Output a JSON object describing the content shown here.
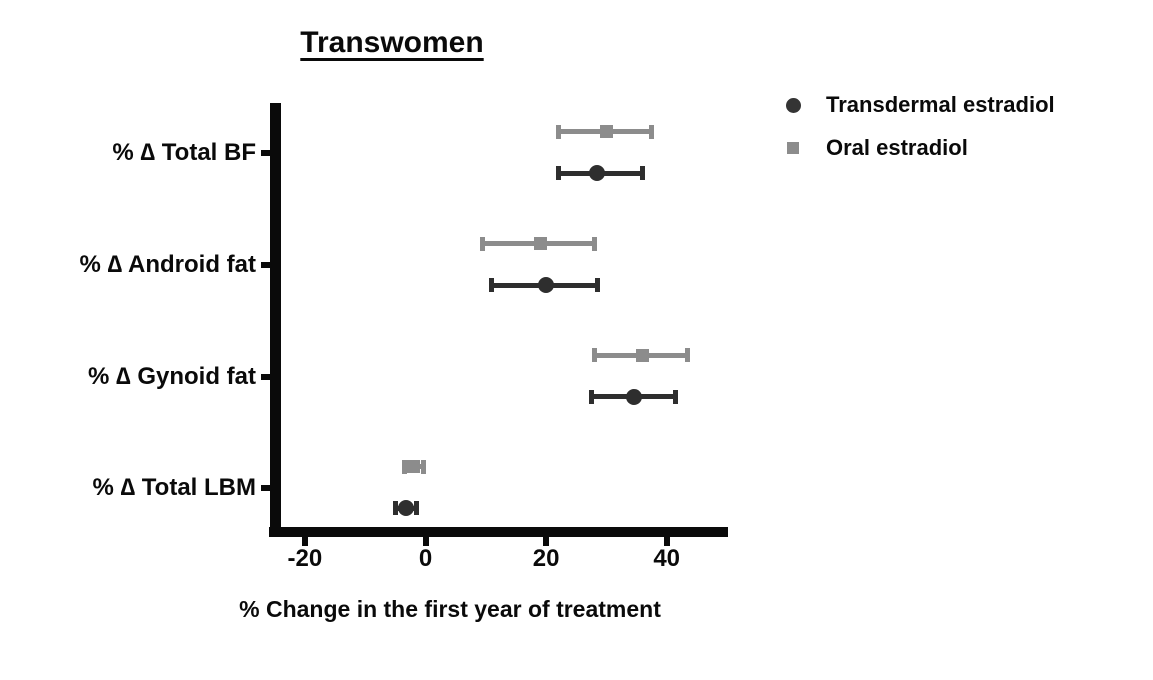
{
  "figure": {
    "title": "Transwomen",
    "xlabel": "% Change in the first year of treatment"
  },
  "legend": [
    {
      "name": "Transdermal estradiol",
      "marker": "circle",
      "color": "#343434"
    },
    {
      "name": "Oral estradiol",
      "marker": "square",
      "color": "#8c8c8c"
    }
  ],
  "chart_data": {
    "type": "scatter",
    "subtype": "horizontal-point-estimates-with-error-bars",
    "title": "Transwomen",
    "xlabel": "% Change in the first year of treatment",
    "xlim": [
      -25,
      50
    ],
    "xticks": [
      -20,
      0,
      20,
      40
    ],
    "grid": false,
    "legend_position": "top-right",
    "categories": [
      "% ∆ Total BF",
      "% ∆ Android fat",
      "% ∆ Gynoid fat",
      "% ∆ Total LBM"
    ],
    "series": [
      {
        "name": "Oral estradiol",
        "marker": "square",
        "color": "#8c8c8c",
        "values": [
          30,
          19,
          36,
          -2
        ],
        "ci_low": [
          22,
          9.5,
          28,
          -3.5
        ],
        "ci_high": [
          37.5,
          28,
          43.5,
          -0.3
        ]
      },
      {
        "name": "Transdermal estradiol",
        "marker": "circle",
        "color": "#2e2e2e",
        "values": [
          28.5,
          20,
          34.5,
          -3.3
        ],
        "ci_low": [
          22,
          11,
          27.5,
          -5
        ],
        "ci_high": [
          36,
          28.5,
          41.5,
          -1.5
        ]
      }
    ]
  }
}
